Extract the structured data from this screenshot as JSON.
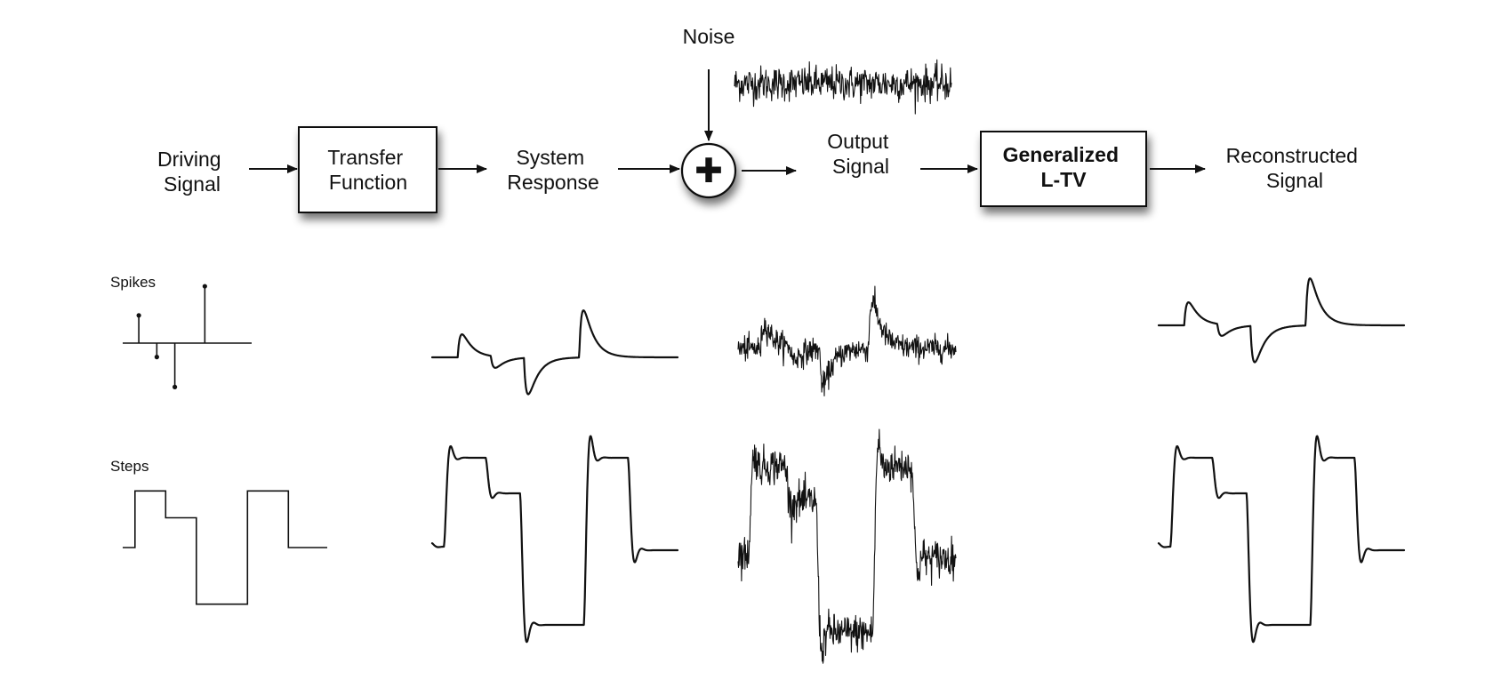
{
  "blocks": {
    "driving_signal": [
      "Driving",
      "Signal"
    ],
    "transfer_function": [
      "Transfer",
      "Function"
    ],
    "system_response": [
      "System",
      "Response"
    ],
    "noise": "Noise",
    "adder_symbol": "✚",
    "output_signal": [
      "Output",
      "Signal"
    ],
    "generalized_ltv": [
      "Generalized",
      "L-TV"
    ],
    "reconstructed_signal": [
      "Reconstructed",
      "Signal"
    ]
  },
  "rows": {
    "spikes_label": "Spikes",
    "steps_label": "Steps"
  },
  "signals": {
    "spikes": [
      {
        "t": 0.06,
        "amp": 0.6
      },
      {
        "t": 0.21,
        "amp": -0.3
      },
      {
        "t": 0.36,
        "amp": -0.95
      },
      {
        "t": 0.61,
        "amp": 1.23
      }
    ],
    "steps": {
      "t": [
        0.0,
        0.06,
        0.21,
        0.36,
        0.61,
        0.81,
        1.0
      ],
      "amp": [
        0.0,
        0.95,
        0.5,
        -0.95,
        0.95,
        0.0,
        0.0
      ]
    }
  },
  "colors": {
    "ink": "#111111",
    "box_shadow": "#8a8a8a",
    "background": "#ffffff"
  }
}
